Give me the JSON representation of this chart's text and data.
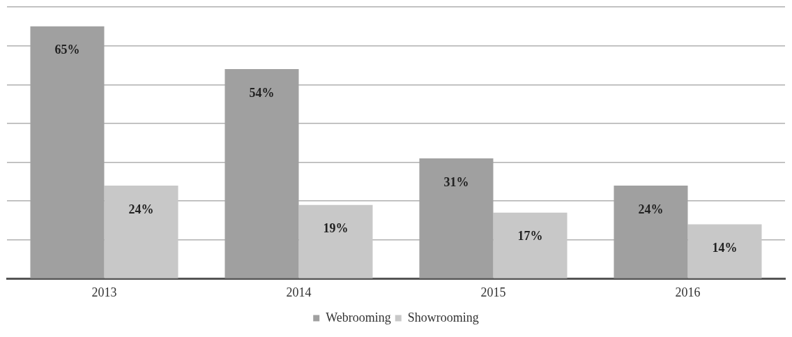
{
  "chart_data": {
    "type": "bar",
    "categories": [
      "2013",
      "2014",
      "2015",
      "2016"
    ],
    "series": [
      {
        "name": "Webrooming",
        "color": "#a0a0a0",
        "values": [
          65,
          54,
          31,
          24
        ],
        "value_labels": [
          "65%",
          "54%",
          "31%",
          "24%"
        ]
      },
      {
        "name": "Showrooming",
        "color": "#c8c8c8",
        "values": [
          24,
          19,
          17,
          14
        ],
        "value_labels": [
          "24%",
          "19%",
          "17%",
          "14%"
        ]
      }
    ],
    "tick_labels": "x",
    "grid": "y",
    "legend": "bottom"
  }
}
